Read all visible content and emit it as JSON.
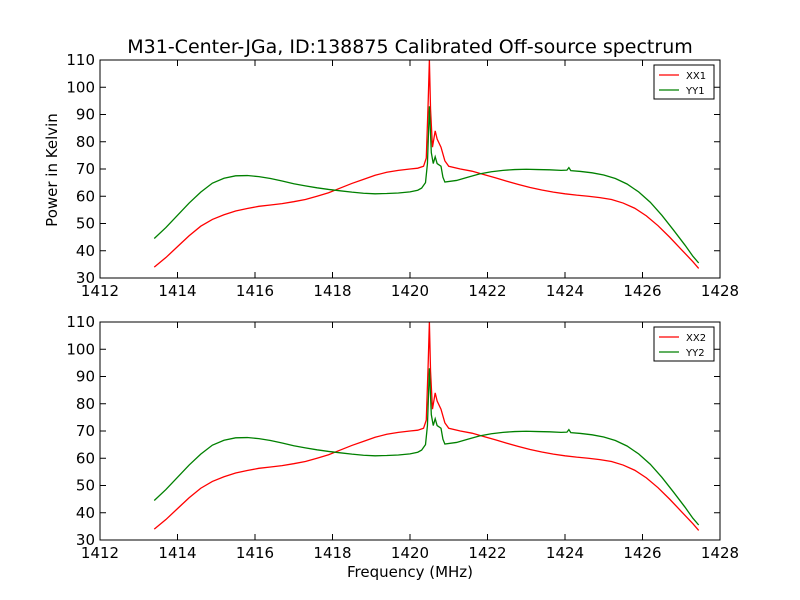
{
  "chart_data": [
    {
      "type": "line",
      "title": "M31-Center-JGa, ID:138875 Calibrated Off-source spectrum",
      "xlabel": "",
      "ylabel": "Power in Kelvin",
      "xlim": [
        1412,
        1428
      ],
      "ylim": [
        30,
        110
      ],
      "xticks": [
        1412,
        1414,
        1416,
        1418,
        1420,
        1422,
        1424,
        1426,
        1428
      ],
      "yticks": [
        30,
        40,
        50,
        60,
        70,
        80,
        90,
        100,
        110
      ],
      "grid": false,
      "legend_position": "top-right",
      "series": [
        {
          "name": "XX1",
          "color": "#ff0000",
          "points": [
            [
              1413.4,
              34
            ],
            [
              1413.7,
              37.5
            ],
            [
              1414.0,
              41.5
            ],
            [
              1414.3,
              45.5
            ],
            [
              1414.6,
              49
            ],
            [
              1414.9,
              51.5
            ],
            [
              1415.2,
              53.2
            ],
            [
              1415.5,
              54.6
            ],
            [
              1415.8,
              55.5
            ],
            [
              1416.1,
              56.3
            ],
            [
              1416.4,
              56.8
            ],
            [
              1416.7,
              57.3
            ],
            [
              1417.0,
              58.0
            ],
            [
              1417.3,
              58.8
            ],
            [
              1417.6,
              60.0
            ],
            [
              1417.9,
              61.3
            ],
            [
              1418.2,
              63.0
            ],
            [
              1418.5,
              64.7
            ],
            [
              1418.8,
              66.2
            ],
            [
              1419.1,
              67.7
            ],
            [
              1419.4,
              68.8
            ],
            [
              1419.7,
              69.5
            ],
            [
              1420.0,
              70.0
            ],
            [
              1420.2,
              70.3
            ],
            [
              1420.35,
              71.0
            ],
            [
              1420.42,
              74
            ],
            [
              1420.47,
              95
            ],
            [
              1420.5,
              110
            ],
            [
              1420.53,
              92
            ],
            [
              1420.58,
              78
            ],
            [
              1420.65,
              84
            ],
            [
              1420.7,
              81
            ],
            [
              1420.8,
              78
            ],
            [
              1420.9,
              73
            ],
            [
              1421.0,
              71
            ],
            [
              1421.3,
              70.0
            ],
            [
              1421.6,
              69.2
            ],
            [
              1421.9,
              68.0
            ],
            [
              1422.2,
              66.8
            ],
            [
              1422.5,
              65.5
            ],
            [
              1422.8,
              64.3
            ],
            [
              1423.1,
              63.2
            ],
            [
              1423.4,
              62.3
            ],
            [
              1423.7,
              61.5
            ],
            [
              1424.0,
              60.9
            ],
            [
              1424.3,
              60.4
            ],
            [
              1424.6,
              60.0
            ],
            [
              1424.9,
              59.5
            ],
            [
              1425.2,
              58.8
            ],
            [
              1425.5,
              57.5
            ],
            [
              1425.8,
              55.6
            ],
            [
              1426.1,
              52.8
            ],
            [
              1426.4,
              49.2
            ],
            [
              1426.7,
              45.0
            ],
            [
              1427.0,
              40.5
            ],
            [
              1427.3,
              36.0
            ],
            [
              1427.45,
              33.5
            ]
          ]
        },
        {
          "name": "YY1",
          "color": "#008000",
          "points": [
            [
              1413.4,
              44.5
            ],
            [
              1413.7,
              48.5
            ],
            [
              1414.0,
              53.0
            ],
            [
              1414.3,
              57.5
            ],
            [
              1414.6,
              61.5
            ],
            [
              1414.9,
              64.8
            ],
            [
              1415.2,
              66.6
            ],
            [
              1415.5,
              67.5
            ],
            [
              1415.8,
              67.6
            ],
            [
              1416.1,
              67.2
            ],
            [
              1416.4,
              66.5
            ],
            [
              1416.7,
              65.6
            ],
            [
              1417.0,
              64.6
            ],
            [
              1417.3,
              63.8
            ],
            [
              1417.6,
              63.1
            ],
            [
              1417.9,
              62.5
            ],
            [
              1418.2,
              62.0
            ],
            [
              1418.5,
              61.5
            ],
            [
              1418.8,
              61.1
            ],
            [
              1419.1,
              60.9
            ],
            [
              1419.4,
              61.0
            ],
            [
              1419.7,
              61.2
            ],
            [
              1420.0,
              61.6
            ],
            [
              1420.2,
              62.2
            ],
            [
              1420.3,
              63.0
            ],
            [
              1420.4,
              65.0
            ],
            [
              1420.45,
              72
            ],
            [
              1420.5,
              93
            ],
            [
              1420.55,
              76
            ],
            [
              1420.6,
              72
            ],
            [
              1420.65,
              74.5
            ],
            [
              1420.7,
              72
            ],
            [
              1420.8,
              71
            ],
            [
              1420.85,
              67
            ],
            [
              1420.9,
              65.2
            ],
            [
              1421.2,
              65.8
            ],
            [
              1421.5,
              67.0
            ],
            [
              1421.8,
              68.2
            ],
            [
              1422.1,
              69.0
            ],
            [
              1422.4,
              69.5
            ],
            [
              1422.7,
              69.8
            ],
            [
              1423.0,
              69.9
            ],
            [
              1423.3,
              69.8
            ],
            [
              1423.6,
              69.7
            ],
            [
              1423.9,
              69.5
            ],
            [
              1424.05,
              69.6
            ],
            [
              1424.1,
              70.5
            ],
            [
              1424.15,
              69.4
            ],
            [
              1424.4,
              69.1
            ],
            [
              1424.7,
              68.6
            ],
            [
              1425.0,
              67.8
            ],
            [
              1425.3,
              66.5
            ],
            [
              1425.6,
              64.5
            ],
            [
              1425.9,
              61.6
            ],
            [
              1426.2,
              57.8
            ],
            [
              1426.5,
              53.0
            ],
            [
              1426.8,
              47.6
            ],
            [
              1427.1,
              42.0
            ],
            [
              1427.3,
              38.0
            ],
            [
              1427.45,
              35.5
            ]
          ]
        }
      ]
    },
    {
      "type": "line",
      "title": "",
      "xlabel": "Frequency (MHz)",
      "ylabel": "",
      "xlim": [
        1412,
        1428
      ],
      "ylim": [
        30,
        110
      ],
      "xticks": [
        1412,
        1414,
        1416,
        1418,
        1420,
        1422,
        1424,
        1426,
        1428
      ],
      "yticks": [
        30,
        40,
        50,
        60,
        70,
        80,
        90,
        100,
        110
      ],
      "grid": false,
      "legend_position": "top-right",
      "series": [
        {
          "name": "XX2",
          "color": "#ff0000",
          "points": [
            [
              1413.4,
              34
            ],
            [
              1413.7,
              37.5
            ],
            [
              1414.0,
              41.5
            ],
            [
              1414.3,
              45.5
            ],
            [
              1414.6,
              49
            ],
            [
              1414.9,
              51.5
            ],
            [
              1415.2,
              53.2
            ],
            [
              1415.5,
              54.6
            ],
            [
              1415.8,
              55.5
            ],
            [
              1416.1,
              56.3
            ],
            [
              1416.4,
              56.8
            ],
            [
              1416.7,
              57.3
            ],
            [
              1417.0,
              58.0
            ],
            [
              1417.3,
              58.8
            ],
            [
              1417.6,
              60.0
            ],
            [
              1417.9,
              61.3
            ],
            [
              1418.2,
              63.0
            ],
            [
              1418.5,
              64.7
            ],
            [
              1418.8,
              66.2
            ],
            [
              1419.1,
              67.7
            ],
            [
              1419.4,
              68.8
            ],
            [
              1419.7,
              69.5
            ],
            [
              1420.0,
              70.0
            ],
            [
              1420.2,
              70.3
            ],
            [
              1420.35,
              71.0
            ],
            [
              1420.42,
              74
            ],
            [
              1420.47,
              95
            ],
            [
              1420.5,
              110
            ],
            [
              1420.53,
              92
            ],
            [
              1420.58,
              78
            ],
            [
              1420.65,
              84
            ],
            [
              1420.7,
              81
            ],
            [
              1420.8,
              78
            ],
            [
              1420.9,
              73
            ],
            [
              1421.0,
              71
            ],
            [
              1421.3,
              70.0
            ],
            [
              1421.6,
              69.2
            ],
            [
              1421.9,
              68.0
            ],
            [
              1422.2,
              66.8
            ],
            [
              1422.5,
              65.5
            ],
            [
              1422.8,
              64.3
            ],
            [
              1423.1,
              63.2
            ],
            [
              1423.4,
              62.3
            ],
            [
              1423.7,
              61.5
            ],
            [
              1424.0,
              60.9
            ],
            [
              1424.3,
              60.4
            ],
            [
              1424.6,
              60.0
            ],
            [
              1424.9,
              59.5
            ],
            [
              1425.2,
              58.8
            ],
            [
              1425.5,
              57.5
            ],
            [
              1425.8,
              55.6
            ],
            [
              1426.1,
              52.8
            ],
            [
              1426.4,
              49.2
            ],
            [
              1426.7,
              45.0
            ],
            [
              1427.0,
              40.5
            ],
            [
              1427.3,
              36.0
            ],
            [
              1427.45,
              33.5
            ]
          ]
        },
        {
          "name": "YY2",
          "color": "#008000",
          "points": [
            [
              1413.4,
              44.5
            ],
            [
              1413.7,
              48.5
            ],
            [
              1414.0,
              53.0
            ],
            [
              1414.3,
              57.5
            ],
            [
              1414.6,
              61.5
            ],
            [
              1414.9,
              64.8
            ],
            [
              1415.2,
              66.6
            ],
            [
              1415.5,
              67.5
            ],
            [
              1415.8,
              67.6
            ],
            [
              1416.1,
              67.2
            ],
            [
              1416.4,
              66.5
            ],
            [
              1416.7,
              65.6
            ],
            [
              1417.0,
              64.6
            ],
            [
              1417.3,
              63.8
            ],
            [
              1417.6,
              63.1
            ],
            [
              1417.9,
              62.5
            ],
            [
              1418.2,
              62.0
            ],
            [
              1418.5,
              61.5
            ],
            [
              1418.8,
              61.1
            ],
            [
              1419.1,
              60.9
            ],
            [
              1419.4,
              61.0
            ],
            [
              1419.7,
              61.2
            ],
            [
              1420.0,
              61.6
            ],
            [
              1420.2,
              62.2
            ],
            [
              1420.3,
              63.0
            ],
            [
              1420.4,
              65.0
            ],
            [
              1420.45,
              72
            ],
            [
              1420.5,
              93
            ],
            [
              1420.55,
              76
            ],
            [
              1420.6,
              72
            ],
            [
              1420.65,
              74.5
            ],
            [
              1420.7,
              72
            ],
            [
              1420.8,
              71
            ],
            [
              1420.85,
              67
            ],
            [
              1420.9,
              65.2
            ],
            [
              1421.2,
              65.8
            ],
            [
              1421.5,
              67.0
            ],
            [
              1421.8,
              68.2
            ],
            [
              1422.1,
              69.0
            ],
            [
              1422.4,
              69.5
            ],
            [
              1422.7,
              69.8
            ],
            [
              1423.0,
              69.9
            ],
            [
              1423.3,
              69.8
            ],
            [
              1423.6,
              69.7
            ],
            [
              1423.9,
              69.5
            ],
            [
              1424.05,
              69.6
            ],
            [
              1424.1,
              70.5
            ],
            [
              1424.15,
              69.4
            ],
            [
              1424.4,
              69.1
            ],
            [
              1424.7,
              68.6
            ],
            [
              1425.0,
              67.8
            ],
            [
              1425.3,
              66.5
            ],
            [
              1425.6,
              64.5
            ],
            [
              1425.9,
              61.6
            ],
            [
              1426.2,
              57.8
            ],
            [
              1426.5,
              53.0
            ],
            [
              1426.8,
              47.6
            ],
            [
              1427.1,
              42.0
            ],
            [
              1427.3,
              38.0
            ],
            [
              1427.45,
              35.5
            ]
          ]
        }
      ]
    }
  ]
}
